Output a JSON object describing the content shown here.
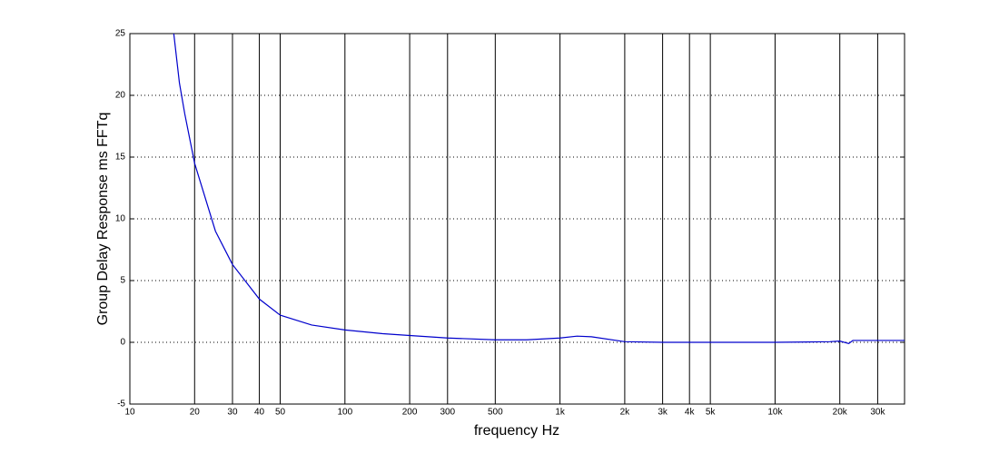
{
  "chart_data": {
    "type": "line",
    "xlabel": "frequency  Hz",
    "ylabel": "Group Delay Response ms   FFTq",
    "x": [
      16,
      17,
      18,
      20,
      25,
      30,
      40,
      50,
      70,
      100,
      150,
      200,
      300,
      500,
      700,
      1000,
      1200,
      1400,
      2000,
      3000,
      5000,
      10000,
      18000,
      20000,
      22000,
      23000,
      40000
    ],
    "series": [
      {
        "name": "FFTq",
        "color": "#0000cc",
        "values": [
          25,
          21,
          18.5,
          14.5,
          9,
          6.3,
          3.5,
          2.2,
          1.4,
          1.0,
          0.7,
          0.55,
          0.35,
          0.2,
          0.2,
          0.35,
          0.5,
          0.45,
          0.05,
          0,
          0,
          0,
          0.05,
          0.1,
          -0.1,
          0.15,
          0.15
        ]
      }
    ],
    "xlim": [
      10,
      40000
    ],
    "xscale": "log",
    "xticks": [
      10,
      20,
      30,
      40,
      50,
      100,
      200,
      300,
      500,
      {
        "value": 1000,
        "label": "1k"
      },
      {
        "value": 2000,
        "label": "2k"
      },
      {
        "value": 3000,
        "label": "3k"
      },
      {
        "value": 4000,
        "label": "4k"
      },
      {
        "value": 5000,
        "label": "5k"
      },
      {
        "value": 10000,
        "label": "10k"
      },
      {
        "value": 20000,
        "label": "20k"
      },
      {
        "value": 30000,
        "label": "30k"
      }
    ],
    "ylim": [
      -5,
      25
    ],
    "yticks": [
      -5,
      0,
      5,
      10,
      15,
      20,
      25
    ],
    "grid": true
  }
}
